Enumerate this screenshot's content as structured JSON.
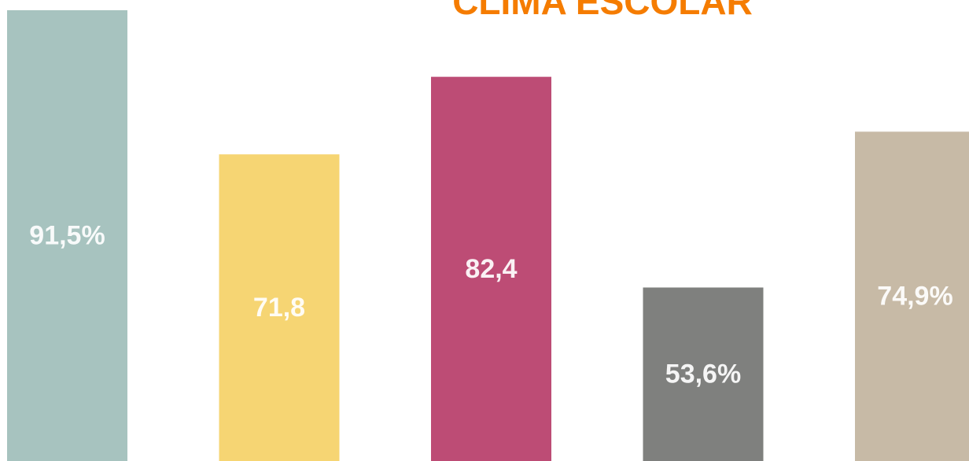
{
  "chart_data": {
    "type": "bar",
    "title": "CLIMA ESCOLAR",
    "values": [
      91.5,
      71.8,
      82.4,
      53.6,
      74.9
    ],
    "value_labels": [
      "91,5%",
      "71,8",
      "82,4",
      "53,6%",
      "74,9%"
    ],
    "colors": [
      "#a7c3bf",
      "#f6d573",
      "#bd4c75",
      "#7f807e",
      "#c7baa6"
    ]
  }
}
